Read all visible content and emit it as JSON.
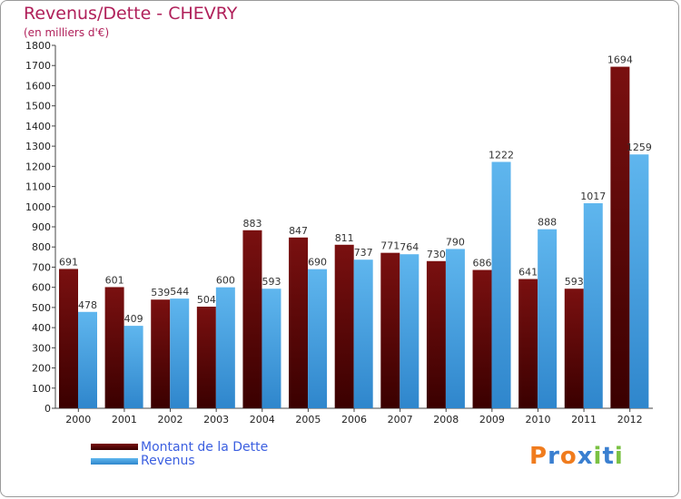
{
  "header": {
    "title": "Revenus/Dette - CHEVRY",
    "subtitle": "(en milliers d'€)"
  },
  "brand": {
    "letters": [
      "P",
      "r",
      "o",
      "x",
      "i",
      "t",
      "i"
    ],
    "colors": [
      "#f07c1e",
      "#3a7fd0",
      "#f07c1e",
      "#3a7fd0",
      "#7ac143",
      "#3a7fd0",
      "#7ac143"
    ]
  },
  "colors": {
    "debt_top": "#7a1010",
    "debt_bottom": "#3a0000",
    "revenue_top": "#5fb6ee",
    "revenue_bottom": "#2f86cc"
  },
  "chart_data": {
    "type": "bar",
    "title": "Revenus/Dette - CHEVRY",
    "subtitle": "(en milliers d'€)",
    "categories": [
      "2000",
      "2001",
      "2002",
      "2003",
      "2004",
      "2005",
      "2006",
      "2007",
      "2008",
      "2009",
      "2010",
      "2011",
      "2012"
    ],
    "series": [
      {
        "name": "Montant de la Dette",
        "values": [
          691,
          601,
          539,
          504,
          883,
          847,
          811,
          771,
          730,
          686,
          641,
          593,
          1694
        ]
      },
      {
        "name": "Revenus",
        "values": [
          478,
          409,
          544,
          600,
          593,
          690,
          737,
          764,
          790,
          1222,
          888,
          1017,
          1259
        ]
      }
    ],
    "ylim": [
      0,
      1800
    ],
    "yticks": [
      0,
      100,
      200,
      300,
      400,
      500,
      600,
      700,
      800,
      900,
      1000,
      1100,
      1200,
      1300,
      1400,
      1500,
      1600,
      1700,
      1800
    ],
    "grid": false,
    "legend": "bottom-left"
  }
}
